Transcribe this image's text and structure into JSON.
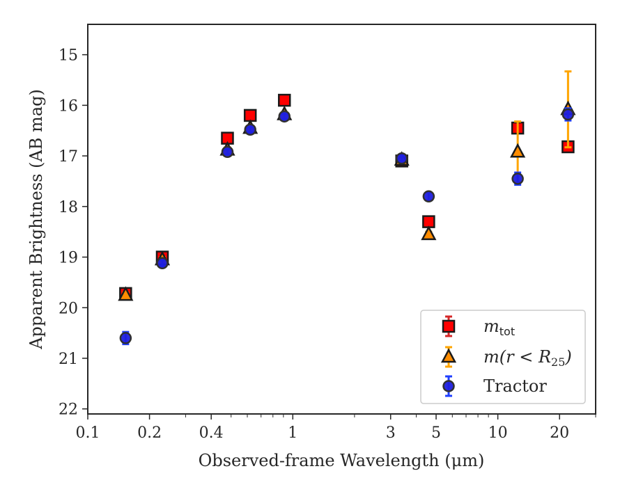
{
  "chart_data": {
    "type": "scatter",
    "title": "",
    "xlabel": "Observed-frame Wavelength (μm)",
    "ylabel": "Apparent Brightness (AB mag)",
    "x_scale": "log",
    "y_inverted": true,
    "xlim": [
      0.1,
      30
    ],
    "ylim": [
      22.1,
      14.4
    ],
    "grid": false,
    "legend_position": "lower-right",
    "x_ticks": [
      {
        "value": 0.1,
        "label": "0.1"
      },
      {
        "value": 0.2,
        "label": "0.2"
      },
      {
        "value": 0.4,
        "label": "0.4"
      },
      {
        "value": 1,
        "label": "1"
      },
      {
        "value": 3,
        "label": "3"
      },
      {
        "value": 5,
        "label": "5"
      },
      {
        "value": 10,
        "label": "10"
      },
      {
        "value": 20,
        "label": "20"
      }
    ],
    "y_ticks": [
      {
        "value": 15,
        "label": "15"
      },
      {
        "value": 16,
        "label": "16"
      },
      {
        "value": 17,
        "label": "17"
      },
      {
        "value": 18,
        "label": "18"
      },
      {
        "value": 19,
        "label": "19"
      },
      {
        "value": 20,
        "label": "20"
      },
      {
        "value": 21,
        "label": "21"
      },
      {
        "value": 22,
        "label": "22"
      }
    ],
    "series": [
      {
        "name_base": "m",
        "name_sub": "tot",
        "marker": "square",
        "color": "#ff0000",
        "errcolor": "#d62728",
        "x": [
          0.153,
          0.231,
          0.48,
          0.62,
          0.91,
          3.4,
          4.6,
          12.5,
          22
        ],
        "y": [
          19.72,
          19.0,
          16.65,
          16.2,
          15.9,
          17.1,
          18.3,
          16.45,
          16.82
        ],
        "yerr": [
          0.05,
          0.05,
          0.03,
          0.03,
          0.03,
          0.05,
          0.05,
          0.1,
          0.1
        ]
      },
      {
        "name_base": "m(r < R",
        "name_sub": "25",
        "name_end": ")",
        "marker": "triangle",
        "color": "#ff8c00",
        "errcolor": "#ffa500",
        "x": [
          0.153,
          0.231,
          0.48,
          0.62,
          0.91,
          3.4,
          4.6,
          12.5,
          22
        ],
        "y": [
          19.75,
          19.05,
          16.88,
          16.45,
          16.18,
          17.08,
          18.55,
          16.92,
          16.08
        ],
        "yerr": [
          0.05,
          0.05,
          0.05,
          0.05,
          0.05,
          0.05,
          0.05,
          0.6,
          0.75
        ]
      },
      {
        "name": "Tractor",
        "marker": "circle",
        "color": "#1f1fdf",
        "errcolor": "#1f3fff",
        "x": [
          0.153,
          0.231,
          0.48,
          0.62,
          0.91,
          3.4,
          4.6,
          12.5,
          22
        ],
        "y": [
          20.6,
          19.12,
          16.92,
          16.48,
          16.22,
          17.05,
          17.8,
          17.45,
          16.18
        ],
        "yerr": [
          0.12,
          0.06,
          0.05,
          0.05,
          0.05,
          0.05,
          0.08,
          0.12,
          0.12
        ]
      }
    ]
  }
}
